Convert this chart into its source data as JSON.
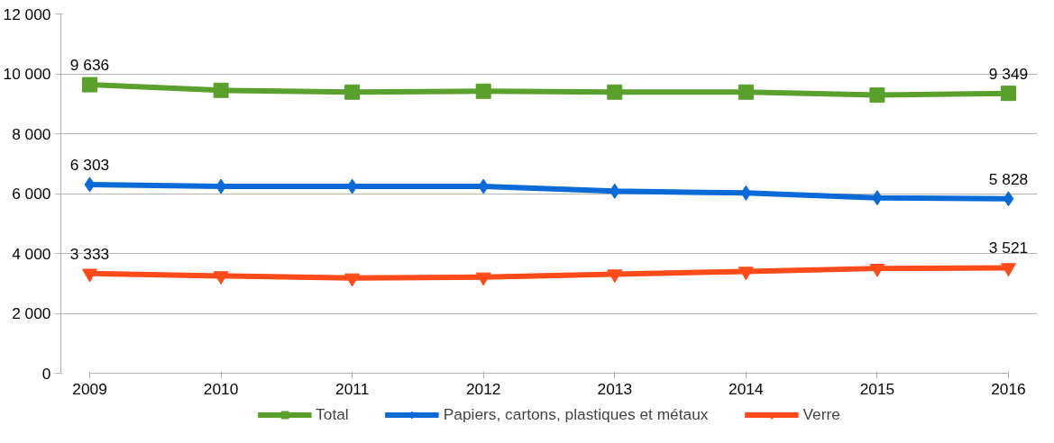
{
  "chart_data": {
    "type": "line",
    "x": [
      2009,
      2010,
      2011,
      2012,
      2013,
      2014,
      2015,
      2016
    ],
    "xlim": [
      2009,
      2016
    ],
    "xticks": [
      2009,
      2010,
      2011,
      2012,
      2013,
      2014,
      2015,
      2016
    ],
    "ylim": [
      0,
      12000
    ],
    "yticks": [
      0,
      {
        "value": 2000,
        "label": "2 000"
      },
      {
        "value": 4000,
        "label": "4 000"
      },
      {
        "value": 6000,
        "label": "6 000"
      },
      {
        "value": 8000,
        "label": "8 000"
      },
      {
        "value": 10000,
        "label": "10 000"
      },
      {
        "value": 12000,
        "label": "12 000"
      }
    ],
    "grid": "y",
    "legend": "bottom",
    "series": [
      {
        "name": "Total",
        "color": "#5aa02c",
        "marker": "square",
        "values": [
          9636,
          9450,
          9390,
          9420,
          9390,
          9390,
          9290,
          9349
        ],
        "value_labels": [
          "9 636",
          null,
          null,
          null,
          null,
          null,
          null,
          "9 349"
        ]
      },
      {
        "name": "Papiers, cartons, plastiques et métaux",
        "color": "#0a6ad8",
        "marker": "diamond",
        "values": [
          6303,
          6240,
          6240,
          6240,
          6080,
          6020,
          5860,
          5828
        ],
        "value_labels": [
          "6 303",
          null,
          null,
          null,
          null,
          null,
          null,
          "5 828"
        ]
      },
      {
        "name": "Verre",
        "color": "#ff4a1a",
        "marker": "triangle",
        "values": [
          3333,
          3250,
          3180,
          3210,
          3310,
          3400,
          3500,
          3521
        ],
        "value_labels": [
          "3 333",
          null,
          null,
          null,
          null,
          null,
          null,
          "3 521"
        ]
      }
    ]
  }
}
